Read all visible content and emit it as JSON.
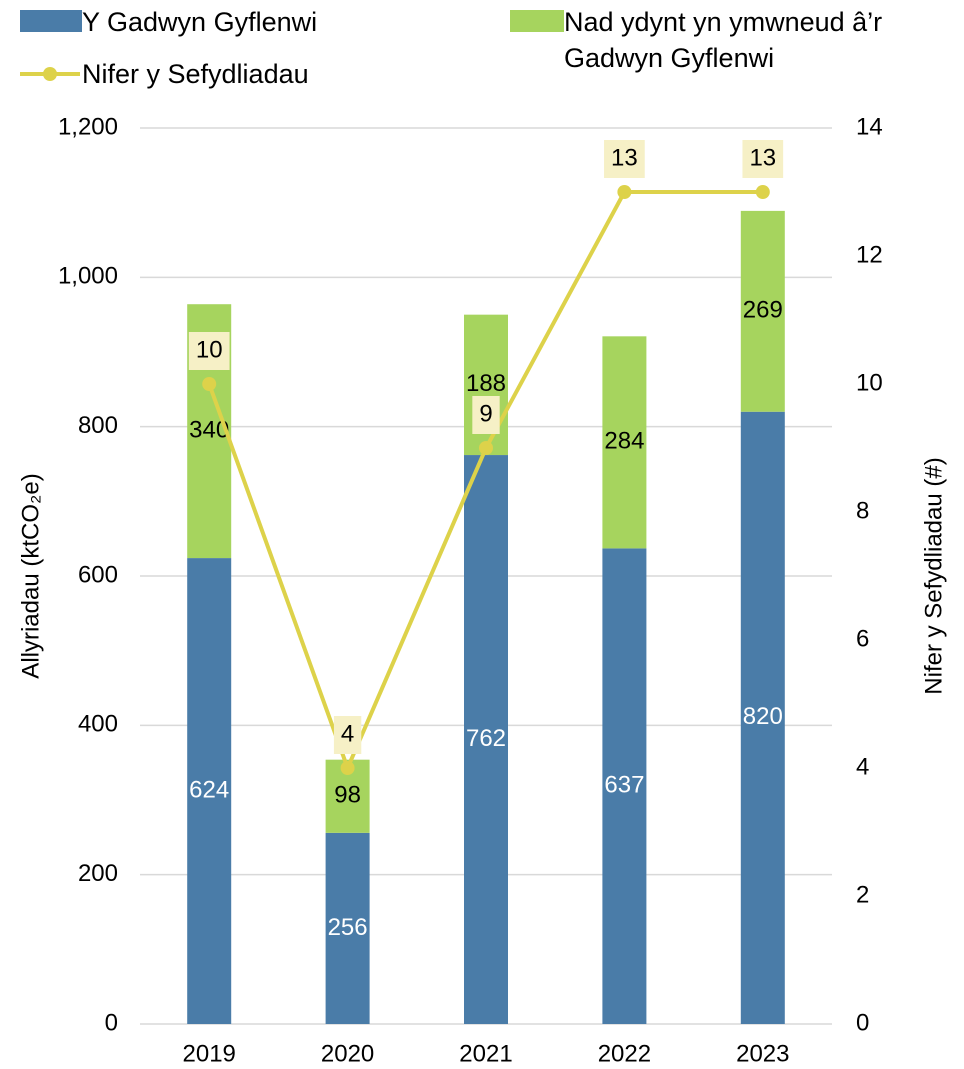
{
  "chart_data": {
    "type": "bar",
    "categories": [
      "2019",
      "2020",
      "2021",
      "2022",
      "2023"
    ],
    "series": [
      {
        "name": "Y Gadwyn Gyflenwi",
        "color": "#4a7ca8",
        "values": [
          624,
          256,
          762,
          637,
          820
        ]
      },
      {
        "name": "Nad ydynt yn ymwneud â’r Gadwyn Gyflenwi",
        "color": "#a6d45e",
        "values": [
          340,
          98,
          188,
          284,
          269
        ]
      },
      {
        "name": "Nifer y Sefydliadau",
        "type": "line",
        "axis": "y2",
        "color": "#ddd24a",
        "values": [
          10,
          4,
          9,
          13,
          13
        ]
      }
    ],
    "ylabel": "Allyriadau (ktCO₂e)",
    "y2label": "Nifer y Sefydliadau (#)",
    "ylim": [
      0,
      1200
    ],
    "yticks": [
      0,
      200,
      400,
      600,
      800,
      {
        "value": 1000,
        "label": "1,000"
      },
      {
        "value": 1200,
        "label": "1,200"
      }
    ],
    "y2lim": [
      0,
      14
    ],
    "y2ticks": [
      0,
      2,
      4,
      6,
      8,
      10,
      12,
      14
    ],
    "stacked": true,
    "grid": true,
    "legend": "top"
  }
}
